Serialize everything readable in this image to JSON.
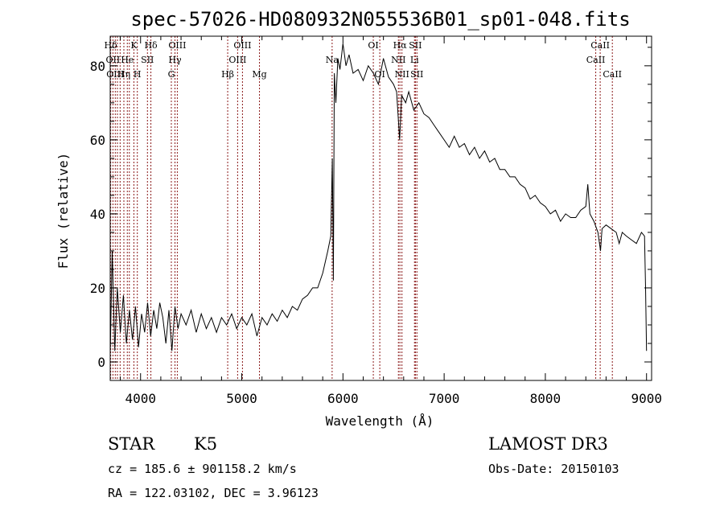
{
  "chart_data": {
    "type": "line",
    "title": "spec-57026-HD080932N055536B01_sp01-048.fits",
    "xlabel": "Wavelength (Å)",
    "ylabel": "Flux (relative)",
    "xlim": [
      3700,
      9050
    ],
    "ylim": [
      -5,
      88
    ],
    "x_ticks": [
      4000,
      5000,
      6000,
      7000,
      8000,
      9000
    ],
    "x_tick_labels": [
      "4000",
      "5000",
      "6000",
      "7000",
      "8000",
      "9000"
    ],
    "y_ticks": [
      0,
      20,
      40,
      60,
      80
    ],
    "y_tick_labels": [
      "0",
      "20",
      "40",
      "60",
      "80"
    ],
    "series": [
      {
        "points": [
          [
            3700,
            2
          ],
          [
            3720,
            30
          ],
          [
            3745,
            3
          ],
          [
            3770,
            20
          ],
          [
            3800,
            8
          ],
          [
            3830,
            18
          ],
          [
            3860,
            5
          ],
          [
            3890,
            14
          ],
          [
            3920,
            6
          ],
          [
            3950,
            15
          ],
          [
            3980,
            4
          ],
          [
            4010,
            13
          ],
          [
            4040,
            8
          ],
          [
            4070,
            16
          ],
          [
            4100,
            7
          ],
          [
            4130,
            14
          ],
          [
            4160,
            9
          ],
          [
            4190,
            16
          ],
          [
            4220,
            12
          ],
          [
            4250,
            5
          ],
          [
            4280,
            14
          ],
          [
            4310,
            3
          ],
          [
            4340,
            15
          ],
          [
            4370,
            9
          ],
          [
            4400,
            13
          ],
          [
            4450,
            10
          ],
          [
            4500,
            14
          ],
          [
            4550,
            8
          ],
          [
            4600,
            13
          ],
          [
            4650,
            9
          ],
          [
            4700,
            12
          ],
          [
            4750,
            8
          ],
          [
            4800,
            12
          ],
          [
            4850,
            10
          ],
          [
            4900,
            13
          ],
          [
            4950,
            9
          ],
          [
            5000,
            12
          ],
          [
            5050,
            10
          ],
          [
            5100,
            13
          ],
          [
            5150,
            7
          ],
          [
            5200,
            12
          ],
          [
            5250,
            10
          ],
          [
            5300,
            13
          ],
          [
            5350,
            11
          ],
          [
            5400,
            14
          ],
          [
            5450,
            12
          ],
          [
            5500,
            15
          ],
          [
            5550,
            14
          ],
          [
            5600,
            17
          ],
          [
            5650,
            18
          ],
          [
            5700,
            20
          ],
          [
            5750,
            20
          ],
          [
            5800,
            24
          ],
          [
            5850,
            30
          ],
          [
            5880,
            34
          ],
          [
            5895,
            55
          ],
          [
            5905,
            22
          ],
          [
            5915,
            78
          ],
          [
            5930,
            70
          ],
          [
            5950,
            82
          ],
          [
            5970,
            79
          ],
          [
            6000,
            86
          ],
          [
            6030,
            80
          ],
          [
            6060,
            83
          ],
          [
            6100,
            78
          ],
          [
            6150,
            79
          ],
          [
            6200,
            76
          ],
          [
            6250,
            80
          ],
          [
            6300,
            78
          ],
          [
            6350,
            75
          ],
          [
            6400,
            82
          ],
          [
            6450,
            77
          ],
          [
            6500,
            75
          ],
          [
            6530,
            73
          ],
          [
            6560,
            60
          ],
          [
            6580,
            72
          ],
          [
            6620,
            70
          ],
          [
            6650,
            73
          ],
          [
            6700,
            68
          ],
          [
            6750,
            70
          ],
          [
            6800,
            67
          ],
          [
            6850,
            66
          ],
          [
            6900,
            64
          ],
          [
            6950,
            62
          ],
          [
            7000,
            60
          ],
          [
            7050,
            58
          ],
          [
            7100,
            61
          ],
          [
            7150,
            58
          ],
          [
            7200,
            59
          ],
          [
            7250,
            56
          ],
          [
            7300,
            58
          ],
          [
            7350,
            55
          ],
          [
            7400,
            57
          ],
          [
            7450,
            54
          ],
          [
            7500,
            55
          ],
          [
            7550,
            52
          ],
          [
            7600,
            52
          ],
          [
            7650,
            50
          ],
          [
            7700,
            50
          ],
          [
            7750,
            48
          ],
          [
            7800,
            47
          ],
          [
            7850,
            44
          ],
          [
            7900,
            45
          ],
          [
            7950,
            43
          ],
          [
            8000,
            42
          ],
          [
            8050,
            40
          ],
          [
            8100,
            41
          ],
          [
            8150,
            38
          ],
          [
            8200,
            40
          ],
          [
            8250,
            39
          ],
          [
            8300,
            39
          ],
          [
            8350,
            41
          ],
          [
            8400,
            42
          ],
          [
            8420,
            48
          ],
          [
            8440,
            40
          ],
          [
            8480,
            38
          ],
          [
            8520,
            35
          ],
          [
            8545,
            30
          ],
          [
            8560,
            36
          ],
          [
            8600,
            37
          ],
          [
            8650,
            36
          ],
          [
            8700,
            35
          ],
          [
            8730,
            32
          ],
          [
            8760,
            35
          ],
          [
            8800,
            34
          ],
          [
            8850,
            33
          ],
          [
            8900,
            32
          ],
          [
            8950,
            35
          ],
          [
            8980,
            34
          ],
          [
            8990,
            20
          ],
          [
            9000,
            3
          ]
        ]
      }
    ],
    "line_markers": [
      {
        "x": 3705,
        "label": "Hδ",
        "row": 0
      },
      {
        "x": 3727,
        "label": "OII",
        "row": 1
      },
      {
        "x": 3750,
        "label": "OIII",
        "row": 2
      },
      {
        "x": 3771,
        "label": "",
        "row": 0
      },
      {
        "x": 3798,
        "label": "",
        "row": 0
      },
      {
        "x": 3835,
        "label": "Hη",
        "row": 2
      },
      {
        "x": 3869,
        "label": "He",
        "row": 1
      },
      {
        "x": 3889,
        "label": "",
        "row": 0
      },
      {
        "x": 3934,
        "label": "K",
        "row": 0
      },
      {
        "x": 3968,
        "label": "H",
        "row": 2
      },
      {
        "x": 4068,
        "label": "SII",
        "row": 1
      },
      {
        "x": 4102,
        "label": "Hδ",
        "row": 0
      },
      {
        "x": 4304,
        "label": "G",
        "row": 2
      },
      {
        "x": 4340,
        "label": "Hγ",
        "row": 1
      },
      {
        "x": 4363,
        "label": "OIII",
        "row": 0
      },
      {
        "x": 4861,
        "label": "Hβ",
        "row": 2
      },
      {
        "x": 4959,
        "label": "OIII",
        "row": 1
      },
      {
        "x": 5007,
        "label": "OIII",
        "row": 0
      },
      {
        "x": 5175,
        "label": "Mg",
        "row": 2
      },
      {
        "x": 5893,
        "label": "Na",
        "row": 1
      },
      {
        "x": 6300,
        "label": "OI",
        "row": 0
      },
      {
        "x": 6364,
        "label": "OI",
        "row": 2
      },
      {
        "x": 6548,
        "label": "NII",
        "row": 1
      },
      {
        "x": 6563,
        "label": "Hα",
        "row": 0
      },
      {
        "x": 6583,
        "label": "NII",
        "row": 2
      },
      {
        "x": 6707,
        "label": "Li",
        "row": 1
      },
      {
        "x": 6716,
        "label": "SII",
        "row": 0
      },
      {
        "x": 6731,
        "label": "SII",
        "row": 2
      },
      {
        "x": 8498,
        "label": "CaII",
        "row": 1
      },
      {
        "x": 8542,
        "label": "CaII",
        "row": 0
      },
      {
        "x": 8662,
        "label": "CaII",
        "row": 2
      }
    ],
    "marker_color": "#8b1a1a",
    "line_color": "#000000"
  },
  "info": {
    "class": "STAR",
    "subclass": "K5",
    "survey": "LAMOST DR3",
    "cz": "cz = 185.6 ± 901158.2 km/s",
    "obs_date": "Obs-Date: 20150103",
    "radec": "RA = 122.03102, DEC =   3.96123"
  }
}
